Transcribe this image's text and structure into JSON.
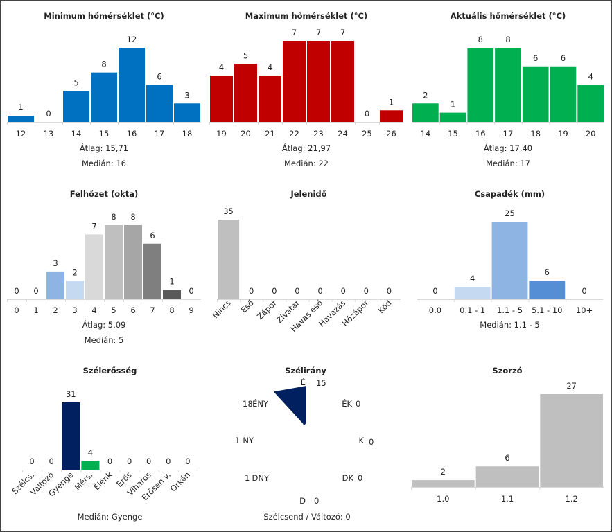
{
  "chart_data": [
    {
      "id": "min",
      "type": "bar",
      "title": "Minimum hőmérséklet (°C)",
      "categories": [
        "12",
        "13",
        "14",
        "15",
        "16",
        "17",
        "18"
      ],
      "values": [
        1,
        0,
        5,
        8,
        12,
        6,
        3
      ],
      "colors": [
        "#0070c0"
      ],
      "ylim": [
        0,
        12
      ],
      "stats": [
        "Átlag: 15,71",
        "Medián: 16"
      ]
    },
    {
      "id": "max",
      "type": "bar",
      "title": "Maximum hőmérséklet (°C)",
      "categories": [
        "19",
        "20",
        "21",
        "22",
        "23",
        "24",
        "25",
        "26"
      ],
      "values": [
        4,
        5,
        4,
        7,
        7,
        7,
        0,
        1
      ],
      "colors": [
        "#c00000"
      ],
      "ylim": [
        0,
        7
      ],
      "stats": [
        "Átlag: 21,97",
        "Medián: 22"
      ]
    },
    {
      "id": "akt",
      "type": "bar",
      "title": "Aktuális hőmérséklet (°C)",
      "categories": [
        "14",
        "15",
        "16",
        "17",
        "18",
        "19",
        "20"
      ],
      "values": [
        2,
        1,
        8,
        8,
        6,
        6,
        4
      ],
      "colors": [
        "#00b050"
      ],
      "ylim": [
        0,
        8
      ],
      "stats": [
        "Átlag: 17,40",
        "Medián: 17"
      ]
    },
    {
      "id": "felho",
      "type": "bar",
      "title": "Felhőzet (okta)",
      "categories": [
        "0",
        "1",
        "2",
        "3",
        "4",
        "5",
        "6",
        "7",
        "8",
        "9"
      ],
      "values": [
        0,
        0,
        3,
        2,
        7,
        8,
        8,
        6,
        1,
        0
      ],
      "colors": [
        "#e0e0e0",
        "#e0e0e0",
        "#8eb4e3",
        "#c5d9f1",
        "#d9d9d9",
        "#bfbfbf",
        "#a6a6a6",
        "#7f7f7f",
        "#595959",
        "#e0e0e0"
      ],
      "ylim": [
        0,
        8
      ],
      "stats": [
        "Átlag: 5,09",
        "Medián: 5"
      ]
    },
    {
      "id": "jelen",
      "type": "bar",
      "title": "Jelenidő",
      "categories": [
        "Nincs",
        "Eső",
        "Zápor",
        "Zivatar",
        "Havas eső",
        "Havazás",
        "Hózápor",
        "Köd"
      ],
      "values": [
        35,
        0,
        0,
        0,
        0,
        0,
        0,
        0
      ],
      "colors": [
        "#bfbfbf"
      ],
      "ylim": [
        0,
        35
      ],
      "rotateTicks": true,
      "stats": []
    },
    {
      "id": "csap",
      "type": "bar",
      "title": "Csapadék (mm)",
      "categories": [
        "0.0",
        "0.1 - 1",
        "1.1 - 5",
        "5.1 - 10",
        "10+"
      ],
      "values": [
        0,
        4,
        25,
        6,
        0
      ],
      "colors": [
        "#e0e0e0",
        "#c5d9f1",
        "#8eb4e3",
        "#558ed5",
        "#e0e0e0"
      ],
      "ylim": [
        0,
        25
      ],
      "stats": [
        "Medián: 1.1 - 5"
      ]
    },
    {
      "id": "szel",
      "type": "bar",
      "title": "Szélerősség",
      "categories": [
        "Szélcs.",
        "Változó",
        "Gyenge",
        "Mérs.",
        "Élénk",
        "Erős",
        "Viharos",
        "Erősen v.",
        "Orkán"
      ],
      "values": [
        0,
        0,
        31,
        4,
        0,
        0,
        0,
        0,
        0
      ],
      "colors": [
        "#e0e0e0",
        "#e0e0e0",
        "#002060",
        "#00b050",
        "#e0e0e0",
        "#e0e0e0",
        "#e0e0e0",
        "#e0e0e0",
        "#e0e0e0"
      ],
      "ylim": [
        0,
        31
      ],
      "rotateTicks": true,
      "stats": [
        "Medián: Gyenge"
      ]
    },
    {
      "id": "irany",
      "type": "radar",
      "title": "Szélirány",
      "directions": [
        "É",
        "ÉK",
        "K",
        "DK",
        "D",
        "DNY",
        "NY",
        "ÉNY"
      ],
      "values": [
        15,
        0,
        0,
        0,
        0,
        1,
        1,
        18
      ],
      "color": "#002060",
      "footer": "Szélcsend / Változó: 0"
    },
    {
      "id": "szorzo",
      "type": "bar",
      "title": "Szorzó",
      "categories": [
        "1.0",
        "1.1",
        "1.2"
      ],
      "values": [
        2,
        6,
        27
      ],
      "colors": [
        "#bfbfbf"
      ],
      "ylim": [
        0,
        27
      ],
      "stats": []
    }
  ]
}
